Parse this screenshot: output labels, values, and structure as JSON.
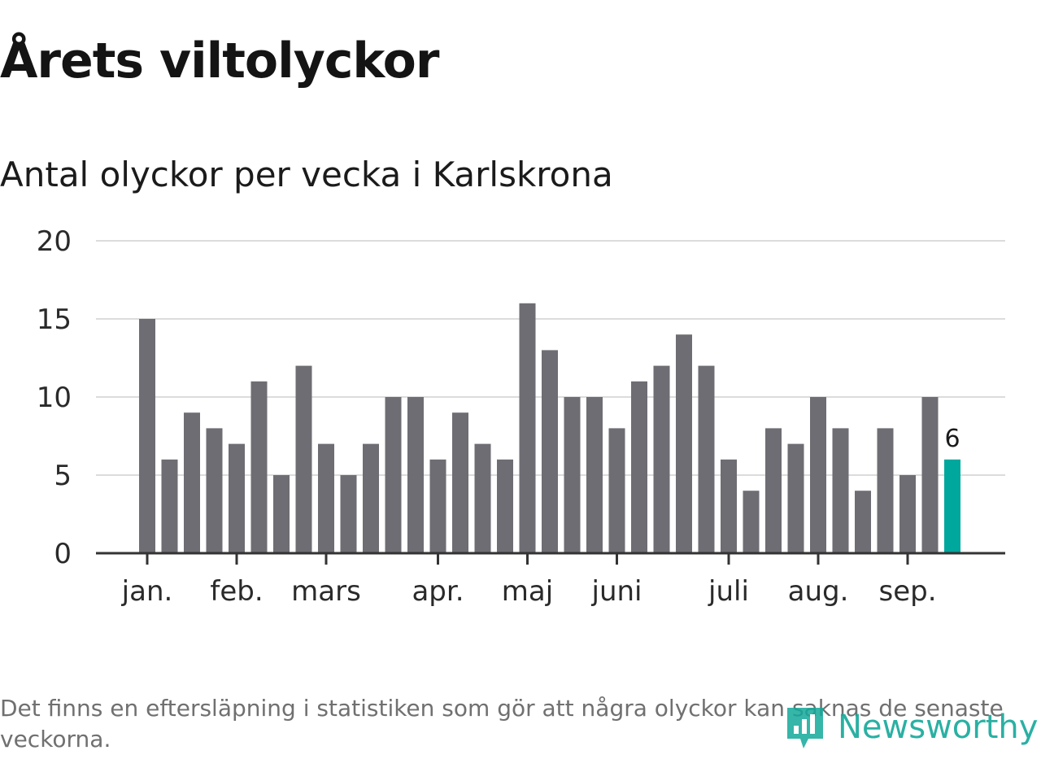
{
  "colors": {
    "bar": "#6e6d73",
    "highlight": "#00a79d",
    "grid": "#dcdcdc",
    "axis": "#333333",
    "brand": "#13a89a"
  },
  "header": {
    "title": "Årets viltolyckor"
  },
  "footer": {
    "note": "Det finns en eftersläpning i statistiken som gör att några olyckor kan saknas de senaste veckorna.",
    "brand": "Newsworthy",
    "brand_icon": "newsworthy-logo-icon"
  },
  "chart_data": {
    "type": "bar",
    "title": "Antal olyckor per vecka i Karlskrona",
    "xlabel": "",
    "ylabel": "",
    "ylim": [
      0,
      20
    ],
    "yticks": [
      0,
      5,
      10,
      15,
      20
    ],
    "grid": true,
    "legend": "none",
    "values": [
      15,
      6,
      9,
      8,
      7,
      11,
      5,
      12,
      7,
      5,
      7,
      10,
      10,
      6,
      9,
      7,
      6,
      16,
      13,
      10,
      10,
      8,
      11,
      12,
      14,
      12,
      6,
      4,
      8,
      7,
      10,
      8,
      4,
      8,
      5,
      10,
      6
    ],
    "highlight_index": 36,
    "highlight_label": "6",
    "month_ticks": [
      {
        "label": "jan.",
        "index": 0
      },
      {
        "label": "feb.",
        "index": 4
      },
      {
        "label": "mars",
        "index": 8
      },
      {
        "label": "apr.",
        "index": 13
      },
      {
        "label": "maj",
        "index": 17
      },
      {
        "label": "juni",
        "index": 21
      },
      {
        "label": "juli",
        "index": 26
      },
      {
        "label": "aug.",
        "index": 30
      },
      {
        "label": "sep.",
        "index": 34
      }
    ]
  }
}
